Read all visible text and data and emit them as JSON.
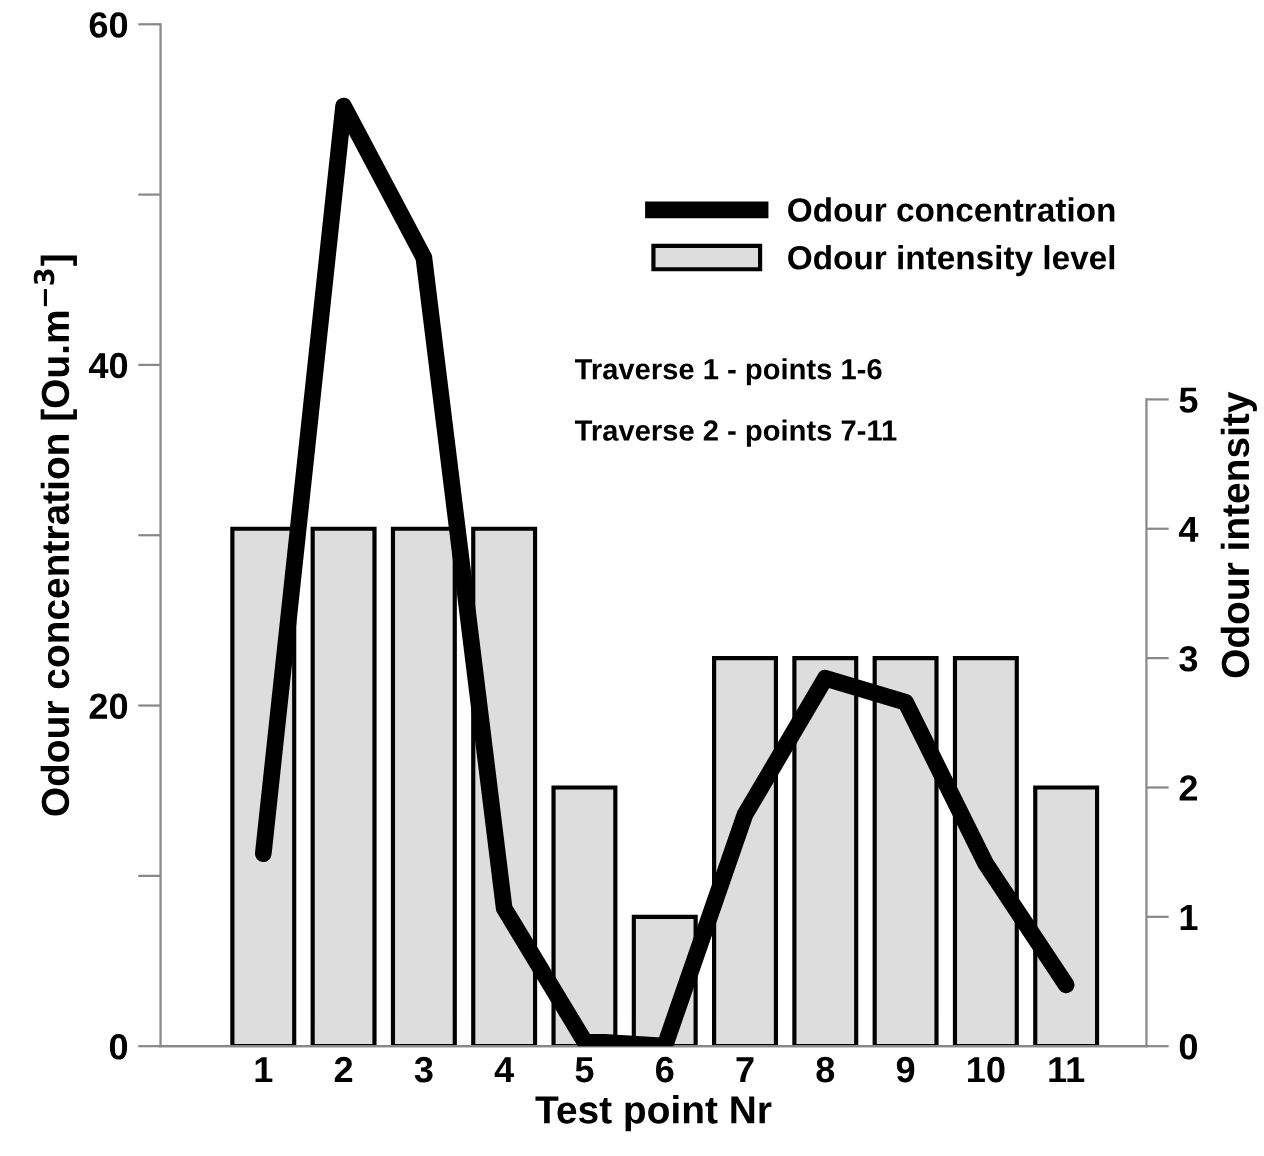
{
  "chart_data": {
    "type": "bar",
    "xlabel": "Test point Nr",
    "ylabel": "Odour concentration [Ou.m$^{−3}$]",
    "y2label": "Odour intensity",
    "categories": [
      "1",
      "2",
      "3",
      "4",
      "5",
      "6",
      "7",
      "8",
      "9",
      "10",
      "11"
    ],
    "series": [
      {
        "name": "Odour concentration",
        "type": "line",
        "color": "#000000",
        "values": [
          11.3,
          55.2,
          46.3,
          8.1,
          0.3,
          0,
          13.6,
          21.6,
          20.2,
          10.7,
          3.6
        ]
      },
      {
        "name": "Odour intensity level",
        "axis": "y2",
        "color": "#dddddd",
        "values": [
          4,
          4,
          4,
          4,
          2,
          1,
          3,
          3,
          3,
          3,
          2
        ]
      }
    ],
    "ylim": [
      0,
      60
    ],
    "yticks": [
      0,
      {
        "value": 10,
        "label": null
      },
      20,
      {
        "value": 30,
        "label": null
      },
      40,
      {
        "value": 50,
        "label": null
      },
      60
    ],
    "y2lim": [
      0,
      7.9
    ],
    "y2ticks": [
      0,
      1,
      2,
      3,
      4,
      5
    ],
    "annotations": [
      "Traverse 1 - points 1-6",
      "Traverse 2 - points 7-11"
    ],
    "legend": "top right",
    "grid": false,
    "line_style": "solid",
    "marker": "none"
  }
}
